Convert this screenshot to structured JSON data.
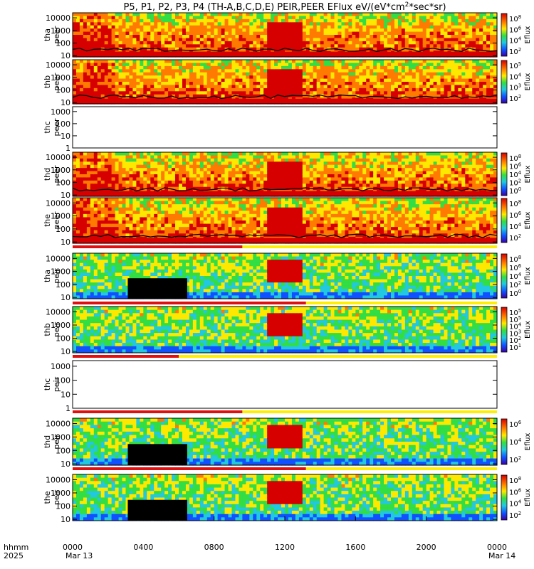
{
  "chart_data": {
    "type": "heatmap",
    "title": "P5, P1, P2, P3, P4 (TH-A,B,C,D,E) PEIR,PEER EFlux eV/(eV*cm²*sec*sr)",
    "title_parts": {
      "main": "P5, P1, P2, P3, P4 (TH-A,B,C,D,E) PEIR,PEER EFlux eV/(eV*cm",
      "sup": "2",
      "tail": "*sec*sr)"
    },
    "xlabel": "hhmm",
    "year_label": "2025",
    "x_ticks": [
      "0000",
      "0400",
      "0800",
      "1200",
      "1600",
      "2000",
      "0000"
    ],
    "x_tick_dates": [
      "Mar 13",
      "Mar 14"
    ],
    "x_range_hours": [
      0,
      24
    ],
    "colorbar_label": "Eflux",
    "panels": [
      {
        "id": "tha-peer",
        "label_top": "tha",
        "label_bot": "peer",
        "yticks": [
          "10",
          "100",
          "1000",
          "10000"
        ],
        "ymin_exp": 0.9,
        "ymax_exp": 4.4,
        "has_data": true,
        "flag_bar": false,
        "cb_ticks": [
          {
            "t": "10",
            "s": "8"
          },
          {
            "t": "10",
            "s": "6"
          },
          {
            "t": "10",
            "s": "4"
          },
          {
            "t": "10",
            "s": "2"
          }
        ],
        "cb_range": [
          1,
          8
        ]
      },
      {
        "id": "thb-peer",
        "label_top": "thb",
        "label_bot": "peer",
        "yticks": [
          "10",
          "100",
          "1000",
          "10000"
        ],
        "ymin_exp": 0.9,
        "ymax_exp": 4.4,
        "has_data": true,
        "flag_bar": false,
        "cb_ticks": [
          {
            "t": "10",
            "s": "5"
          },
          {
            "t": "10",
            "s": "4"
          },
          {
            "t": "10",
            "s": "3"
          },
          {
            "t": "10",
            "s": "2"
          }
        ],
        "cb_range": [
          1.5,
          5.5
        ]
      },
      {
        "id": "thc-peer",
        "label_top": "thc",
        "label_bot": "peer",
        "yticks": [
          "1",
          "10",
          "100",
          "1000"
        ],
        "ymin_exp": 0,
        "ymax_exp": 3.4,
        "has_data": false,
        "flag_bar": false,
        "cb_ticks": [],
        "cb_range": [
          0,
          1
        ]
      },
      {
        "id": "thd-peer",
        "label_top": "thd",
        "label_bot": "peer",
        "yticks": [
          "10",
          "100",
          "1000",
          "10000"
        ],
        "ymin_exp": 0.9,
        "ymax_exp": 4.4,
        "has_data": true,
        "flag_bar": false,
        "cb_ticks": [
          {
            "t": "10",
            "s": "8"
          },
          {
            "t": "10",
            "s": "6"
          },
          {
            "t": "10",
            "s": "4"
          },
          {
            "t": "10",
            "s": "2"
          },
          {
            "t": "10",
            "s": "0"
          }
        ],
        "cb_range": [
          0,
          8
        ]
      },
      {
        "id": "the-peer",
        "label_top": "the",
        "label_bot": "peer",
        "yticks": [
          "10",
          "100",
          "1000",
          "10000"
        ],
        "ymin_exp": 0.9,
        "ymax_exp": 4.4,
        "has_data": true,
        "flag_bar": true,
        "cb_ticks": [
          {
            "t": "10",
            "s": "8"
          },
          {
            "t": "10",
            "s": "6"
          },
          {
            "t": "10",
            "s": "4"
          },
          {
            "t": "10",
            "s": "2"
          }
        ],
        "cb_range": [
          1,
          8
        ]
      },
      {
        "id": "tha-peir",
        "label_top": "tha",
        "label_bot": "peir",
        "yticks": [
          "10",
          "100",
          "1000",
          "10000"
        ],
        "ymin_exp": 0.9,
        "ymax_exp": 4.4,
        "has_data": true,
        "flag_bar": true,
        "cb_ticks": [
          {
            "t": "10",
            "s": "8"
          },
          {
            "t": "10",
            "s": "6"
          },
          {
            "t": "10",
            "s": "4"
          },
          {
            "t": "10",
            "s": "2"
          },
          {
            "t": "10",
            "s": "0"
          }
        ],
        "cb_range": [
          0,
          8
        ]
      },
      {
        "id": "thb-peir",
        "label_top": "thb",
        "label_bot": "peir",
        "yticks": [
          "10",
          "100",
          "1000",
          "10000"
        ],
        "ymin_exp": 0.9,
        "ymax_exp": 4.4,
        "has_data": true,
        "flag_bar": true,
        "cb_ticks": [
          {
            "t": "10",
            "s": "5"
          },
          {
            "t": "10",
            "s": "5"
          },
          {
            "t": "10",
            "s": "4"
          },
          {
            "t": "10",
            "s": "3"
          },
          {
            "t": "10",
            "s": "2"
          },
          {
            "t": "10",
            "s": "1"
          }
        ],
        "cb_range": [
          1,
          5.5
        ]
      },
      {
        "id": "thc-peir",
        "label_top": "thc",
        "label_bot": "peir",
        "yticks": [
          "1",
          "10",
          "100",
          "1000"
        ],
        "ymin_exp": 0,
        "ymax_exp": 3.4,
        "has_data": false,
        "flag_bar": true,
        "cb_ticks": [],
        "cb_range": [
          0,
          1
        ]
      },
      {
        "id": "thd-peir",
        "label_top": "thd",
        "label_bot": "peir",
        "yticks": [
          "10",
          "100",
          "1000",
          "10000"
        ],
        "ymin_exp": 0.9,
        "ymax_exp": 4.4,
        "has_data": true,
        "flag_bar": true,
        "cb_ticks": [
          {
            "t": "10",
            "s": "6"
          },
          {
            "t": "10",
            "s": "4"
          },
          {
            "t": "10",
            "s": "2"
          }
        ],
        "cb_range": [
          1,
          7
        ]
      },
      {
        "id": "the-peir",
        "label_top": "the",
        "label_bot": "peir",
        "yticks": [
          "10",
          "100",
          "1000",
          "10000"
        ],
        "ymin_exp": 0.9,
        "ymax_exp": 4.4,
        "has_data": true,
        "flag_bar": true,
        "cb_ticks": [
          {
            "t": "10",
            "s": "8"
          },
          {
            "t": "10",
            "s": "6"
          },
          {
            "t": "10",
            "s": "4"
          },
          {
            "t": "10",
            "s": "2"
          }
        ],
        "cb_range": [
          1,
          8
        ]
      }
    ]
  },
  "colors": {
    "red": "#d60000",
    "orange": "#ff7a00",
    "yellow": "#ffe800",
    "green": "#33dd44",
    "cyan": "#22c8e0",
    "blue": "#1050ff",
    "black": "#000000",
    "flag_red": "#e01010",
    "flag_yellow": "#ffee00"
  }
}
